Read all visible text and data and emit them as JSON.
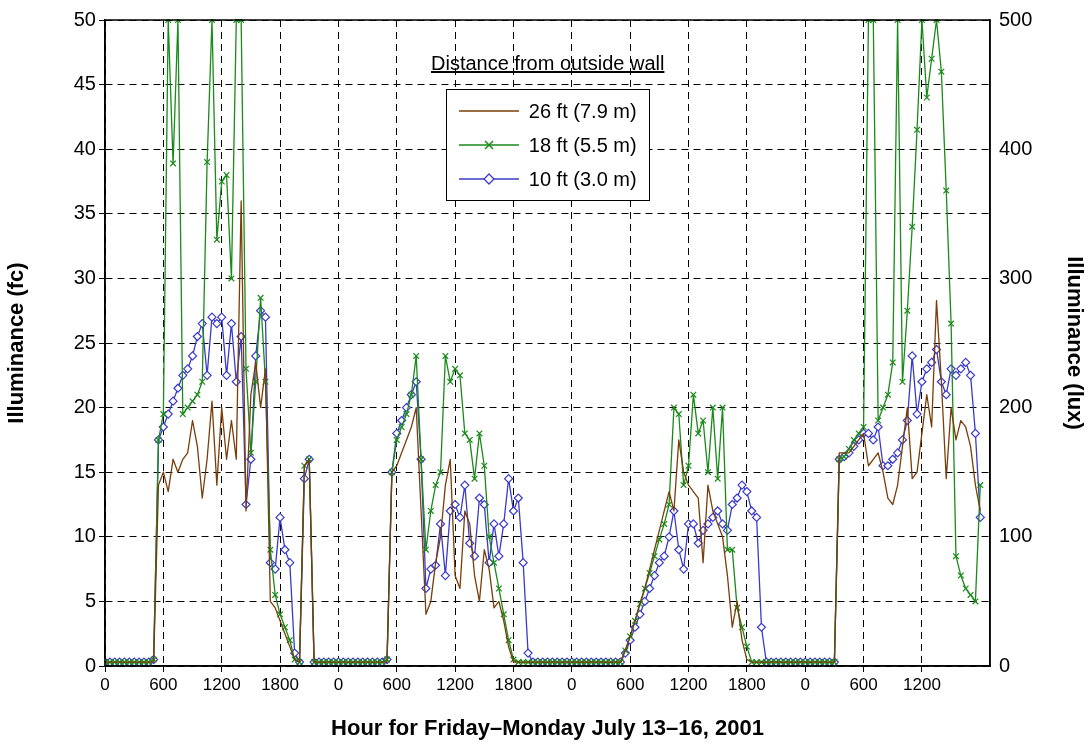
{
  "chart_data": {
    "type": "line",
    "xlabel": "Hour for Friday–Monday July 13–16, 2001",
    "ylabel": "Illuminance (fc)",
    "y2label": "Illuminance (lux)",
    "legend_title": "Distance from outside wall",
    "legend": "top",
    "grid": true,
    "line_style": "solid",
    "categories": [
      "0",
      null,
      null,
      null,
      null,
      null,
      null,
      null,
      null,
      null,
      null,
      null,
      "600",
      null,
      null,
      null,
      null,
      null,
      null,
      null,
      null,
      null,
      null,
      null,
      "1200",
      null,
      null,
      null,
      null,
      null,
      null,
      null,
      null,
      null,
      null,
      null,
      "1800",
      null,
      null,
      null,
      null,
      null,
      null,
      null,
      null,
      null,
      null,
      null,
      "0",
      null,
      null,
      null,
      null,
      null,
      null,
      null,
      null,
      null,
      null,
      null,
      "600",
      null,
      null,
      null,
      null,
      null,
      null,
      null,
      null,
      null,
      null,
      null,
      "1200",
      null,
      null,
      null,
      null,
      null,
      null,
      null,
      null,
      null,
      null,
      null,
      "1800",
      null,
      null,
      null,
      null,
      null,
      null,
      null,
      null,
      null,
      null,
      null,
      "0",
      null,
      null,
      null,
      null,
      null,
      null,
      null,
      null,
      null,
      null,
      null,
      "600",
      null,
      null,
      null,
      null,
      null,
      null,
      null,
      null,
      null,
      null,
      null,
      "1200",
      null,
      null,
      null,
      null,
      null,
      null,
      null,
      null,
      null,
      null,
      null,
      "1800",
      null,
      null,
      null,
      null,
      null,
      null,
      null,
      null,
      null,
      null,
      null,
      "0",
      null,
      null,
      null,
      null,
      null,
      null,
      null,
      null,
      null,
      null,
      null,
      "600",
      null,
      null,
      null,
      null,
      null,
      null,
      null,
      null,
      null,
      null,
      null,
      "1200",
      null,
      null,
      null,
      null,
      null,
      null,
      null,
      null,
      null,
      null,
      null,
      null,
      null,
      null
    ],
    "ylim": [
      0,
      50
    ],
    "yticks": [
      0,
      5,
      10,
      15,
      20,
      25,
      30,
      35,
      40,
      45,
      50
    ],
    "y2lim": [
      0,
      500
    ],
    "y2ticks": [
      0,
      100,
      200,
      300,
      400,
      500
    ],
    "series": [
      {
        "name": "26 ft (7.9 m)",
        "color": "#7a3e0a",
        "marker": "none",
        "values": [
          0.3,
          0.3,
          0.3,
          0.3,
          0.3,
          0.3,
          0.3,
          0.3,
          0.3,
          0.3,
          0.3,
          14,
          15,
          13.5,
          16,
          15,
          16,
          16.5,
          19,
          17,
          13,
          16,
          20.5,
          14,
          20,
          16,
          19,
          16,
          36,
          12,
          21,
          23.5,
          20,
          23,
          5,
          4.5,
          3.5,
          2.5,
          1.5,
          0.5,
          0.3,
          15.5,
          16,
          0.3,
          0.3,
          0.3,
          0.3,
          0.3,
          0.3,
          0.3,
          0.3,
          0.3,
          0.3,
          0.3,
          0.3,
          0.3,
          0.3,
          0.3,
          0.3,
          15,
          15.5,
          16.5,
          17.5,
          18.5,
          20,
          12,
          4,
          5,
          8,
          10,
          14,
          16,
          7,
          6,
          12,
          11,
          7,
          5,
          9,
          7.5,
          4.5,
          5,
          3.5,
          1.5,
          0.3,
          0.3,
          0.3,
          0.3,
          0.3,
          0.3,
          0.3,
          0.3,
          0.3,
          0.3,
          0.3,
          0.3,
          0.3,
          0.3,
          0.3,
          0.3,
          0.3,
          0.3,
          0.3,
          0.3,
          0.3,
          0.3,
          0.3,
          1.2,
          2.3,
          3.5,
          4.8,
          6,
          7.5,
          9,
          10.5,
          12,
          13.5,
          12,
          17.5,
          15,
          14,
          13.5,
          13,
          8,
          14,
          12,
          11,
          10,
          7,
          3,
          5,
          2,
          0.5,
          0.3,
          0.3,
          0.3,
          0.3,
          0.3,
          0.3,
          0.3,
          0.3,
          0.3,
          0.3,
          0.3,
          0.3,
          0.3,
          0.3,
          0.3,
          0.3,
          0.3,
          0.3,
          16.5,
          16.5,
          16.5,
          17,
          17.5,
          18,
          15.5,
          16,
          16.5,
          15,
          13,
          12.5,
          14,
          17,
          20,
          14.5,
          15,
          18,
          21,
          18.5,
          28.3,
          22,
          14.5,
          20,
          17.5,
          19,
          18.5,
          17,
          14,
          12,
          null,
          null
        ]
      },
      {
        "name": "18 ft (5.5 m)",
        "color": "#1a8a1a",
        "marker": "cross",
        "values": [
          0.3,
          0.3,
          0.3,
          0.3,
          0.3,
          0.3,
          0.3,
          0.3,
          0.3,
          0.3,
          0.5,
          17.5,
          19.5,
          50,
          38.9,
          50,
          19.5,
          20,
          20.5,
          21,
          22,
          39,
          50,
          33,
          37.5,
          38,
          30,
          50,
          50,
          23,
          16.5,
          22,
          28.5,
          22,
          9,
          5.5,
          4,
          3,
          2,
          0.5,
          0.3,
          15.5,
          16,
          0.3,
          0.3,
          0.3,
          0.3,
          0.3,
          0.3,
          0.3,
          0.3,
          0.3,
          0.3,
          0.3,
          0.3,
          0.3,
          0.3,
          0.3,
          0.5,
          15,
          17.5,
          18.5,
          19.5,
          21,
          24,
          16,
          9,
          12,
          14,
          15,
          24,
          22,
          23,
          22.5,
          18,
          17.5,
          14.5,
          18,
          15.5,
          10,
          8,
          6,
          4,
          2,
          0.5,
          0.3,
          0.3,
          0.3,
          0.3,
          0.3,
          0.3,
          0.3,
          0.3,
          0.3,
          0.3,
          0.3,
          0.3,
          0.3,
          0.3,
          0.3,
          0.3,
          0.3,
          0.3,
          0.3,
          0.3,
          0.3,
          0.3,
          1.2,
          2.3,
          3.5,
          4.8,
          6,
          7.2,
          8.5,
          9.8,
          11,
          12.5,
          20,
          19.5,
          14,
          15.5,
          21,
          18,
          19,
          15,
          20,
          14.5,
          20,
          9,
          9,
          4.5,
          3,
          1.5,
          0.3,
          0.3,
          0.3,
          0.3,
          0.3,
          0.3,
          0.3,
          0.3,
          0.3,
          0.3,
          0.3,
          0.3,
          0.3,
          0.3,
          0.3,
          0.3,
          0.3,
          0.3,
          16,
          16.2,
          16.8,
          17.5,
          18,
          18.5,
          50,
          50,
          19,
          20,
          21,
          23.5,
          50,
          22,
          27.5,
          34,
          41.5,
          50,
          44,
          47,
          50,
          46,
          36.8,
          26.5,
          8.5,
          7,
          6,
          5.5,
          5,
          14,
          null,
          null
        ]
      },
      {
        "name": "10 ft (3.0 m)",
        "color": "#3a3acc",
        "marker": "diamond",
        "values": [
          0.3,
          0.3,
          0.3,
          0.3,
          0.3,
          0.3,
          0.3,
          0.3,
          0.3,
          0.3,
          0.5,
          17.5,
          18.5,
          19.5,
          20.5,
          21.5,
          22.5,
          23,
          24,
          25.5,
          26.5,
          22.5,
          27,
          26.5,
          27,
          22.5,
          26.5,
          22,
          25.5,
          12.5,
          16,
          24,
          27.5,
          27,
          8,
          7.5,
          11.5,
          9,
          8,
          1,
          0.3,
          14.5,
          16,
          0.3,
          0.3,
          0.3,
          0.3,
          0.3,
          0.3,
          0.3,
          0.3,
          0.3,
          0.3,
          0.3,
          0.3,
          0.3,
          0.3,
          0.3,
          0.5,
          15,
          18,
          19,
          20,
          21,
          22,
          16,
          6,
          7.5,
          7.8,
          11,
          7,
          12,
          12.5,
          11.5,
          14,
          9.5,
          8.5,
          13,
          12.5,
          8,
          11,
          8.5,
          11,
          14.5,
          12,
          13,
          8,
          1,
          0.3,
          0.3,
          0.3,
          0.3,
          0.3,
          0.3,
          0.3,
          0.3,
          0.3,
          0.3,
          0.3,
          0.3,
          0.3,
          0.3,
          0.3,
          0.3,
          0.3,
          0.3,
          0.3,
          1,
          2,
          3,
          4,
          5,
          6,
          7,
          8,
          8.5,
          10,
          12,
          9,
          7.5,
          11,
          11,
          9.5,
          10.5,
          11,
          11.5,
          12,
          11,
          10.5,
          12.5,
          13,
          14,
          13.5,
          12,
          11.5,
          3,
          0.3,
          0.3,
          0.3,
          0.3,
          0.3,
          0.3,
          0.3,
          0.3,
          0.3,
          0.3,
          0.3,
          0.3,
          0.3,
          0.3,
          0.3,
          16,
          16.2,
          16.5,
          17,
          17.5,
          18,
          18,
          17.5,
          18.5,
          15.5,
          15.5,
          16,
          16.5,
          17.5,
          19,
          24,
          19.5,
          22,
          23,
          23.5,
          24.5,
          22,
          21,
          23,
          22.5,
          23,
          23.5,
          22.5,
          18,
          11.5,
          null,
          null
        ]
      }
    ]
  }
}
